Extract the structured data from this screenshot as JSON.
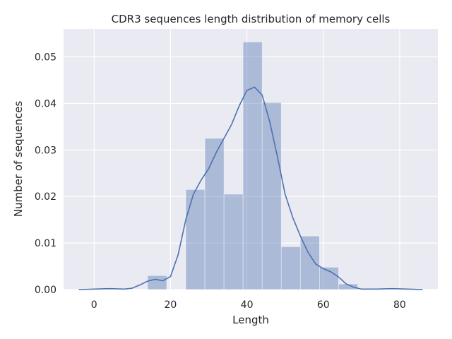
{
  "chart_data": {
    "type": "bar",
    "title": "CDR3 sequences length distribution of memory cells",
    "xlabel": "Length",
    "ylabel": "Number of sequences",
    "xlim": [
      -8,
      90
    ],
    "ylim": [
      0,
      0.056
    ],
    "xticks": [
      0,
      20,
      40,
      60,
      80
    ],
    "yticks": [
      0.0,
      0.01,
      0.02,
      0.03,
      0.04,
      0.05
    ],
    "ytick_labels": [
      "0.00",
      "0.01",
      "0.02",
      "0.03",
      "0.04",
      "0.05"
    ],
    "grid": true,
    "legend": "none",
    "bar_color": "#4c72b0",
    "line_color": "#4c72b0",
    "background": "#eaeaf2",
    "bins": [
      {
        "x0": 14,
        "x1": 19,
        "value": 0.003
      },
      {
        "x0": 19,
        "x1": 24,
        "value": 0.0
      },
      {
        "x0": 24,
        "x1": 29,
        "value": 0.0215
      },
      {
        "x0": 29,
        "x1": 34,
        "value": 0.0325
      },
      {
        "x0": 34,
        "x1": 39,
        "value": 0.0205
      },
      {
        "x0": 39,
        "x1": 44,
        "value": 0.0532
      },
      {
        "x0": 44,
        "x1": 49,
        "value": 0.0402
      },
      {
        "x0": 49,
        "x1": 54,
        "value": 0.0092
      },
      {
        "x0": 54,
        "x1": 59,
        "value": 0.0115
      },
      {
        "x0": 59,
        "x1": 64,
        "value": 0.0048
      },
      {
        "x0": 64,
        "x1": 69,
        "value": 0.0012
      }
    ],
    "kde": {
      "x": [
        -4,
        0,
        4,
        8,
        10,
        12,
        14,
        16,
        18,
        20,
        22,
        24,
        26,
        28,
        30,
        32,
        34,
        36,
        38,
        40,
        42,
        44,
        46,
        48,
        50,
        52,
        54,
        56,
        58,
        60,
        62,
        64,
        66,
        68,
        70,
        74,
        78,
        82,
        86
      ],
      "y": [
        0.0,
        0.0001,
        0.0002,
        0.0001,
        0.0003,
        0.001,
        0.0018,
        0.0022,
        0.0019,
        0.0028,
        0.0075,
        0.015,
        0.0205,
        0.0235,
        0.026,
        0.0295,
        0.0325,
        0.0355,
        0.0395,
        0.0428,
        0.0435,
        0.0418,
        0.036,
        0.0285,
        0.0205,
        0.0155,
        0.0115,
        0.008,
        0.0055,
        0.0045,
        0.0038,
        0.0027,
        0.0012,
        0.0005,
        0.0001,
        0.0001,
        0.0002,
        0.0001,
        0.0
      ]
    }
  }
}
